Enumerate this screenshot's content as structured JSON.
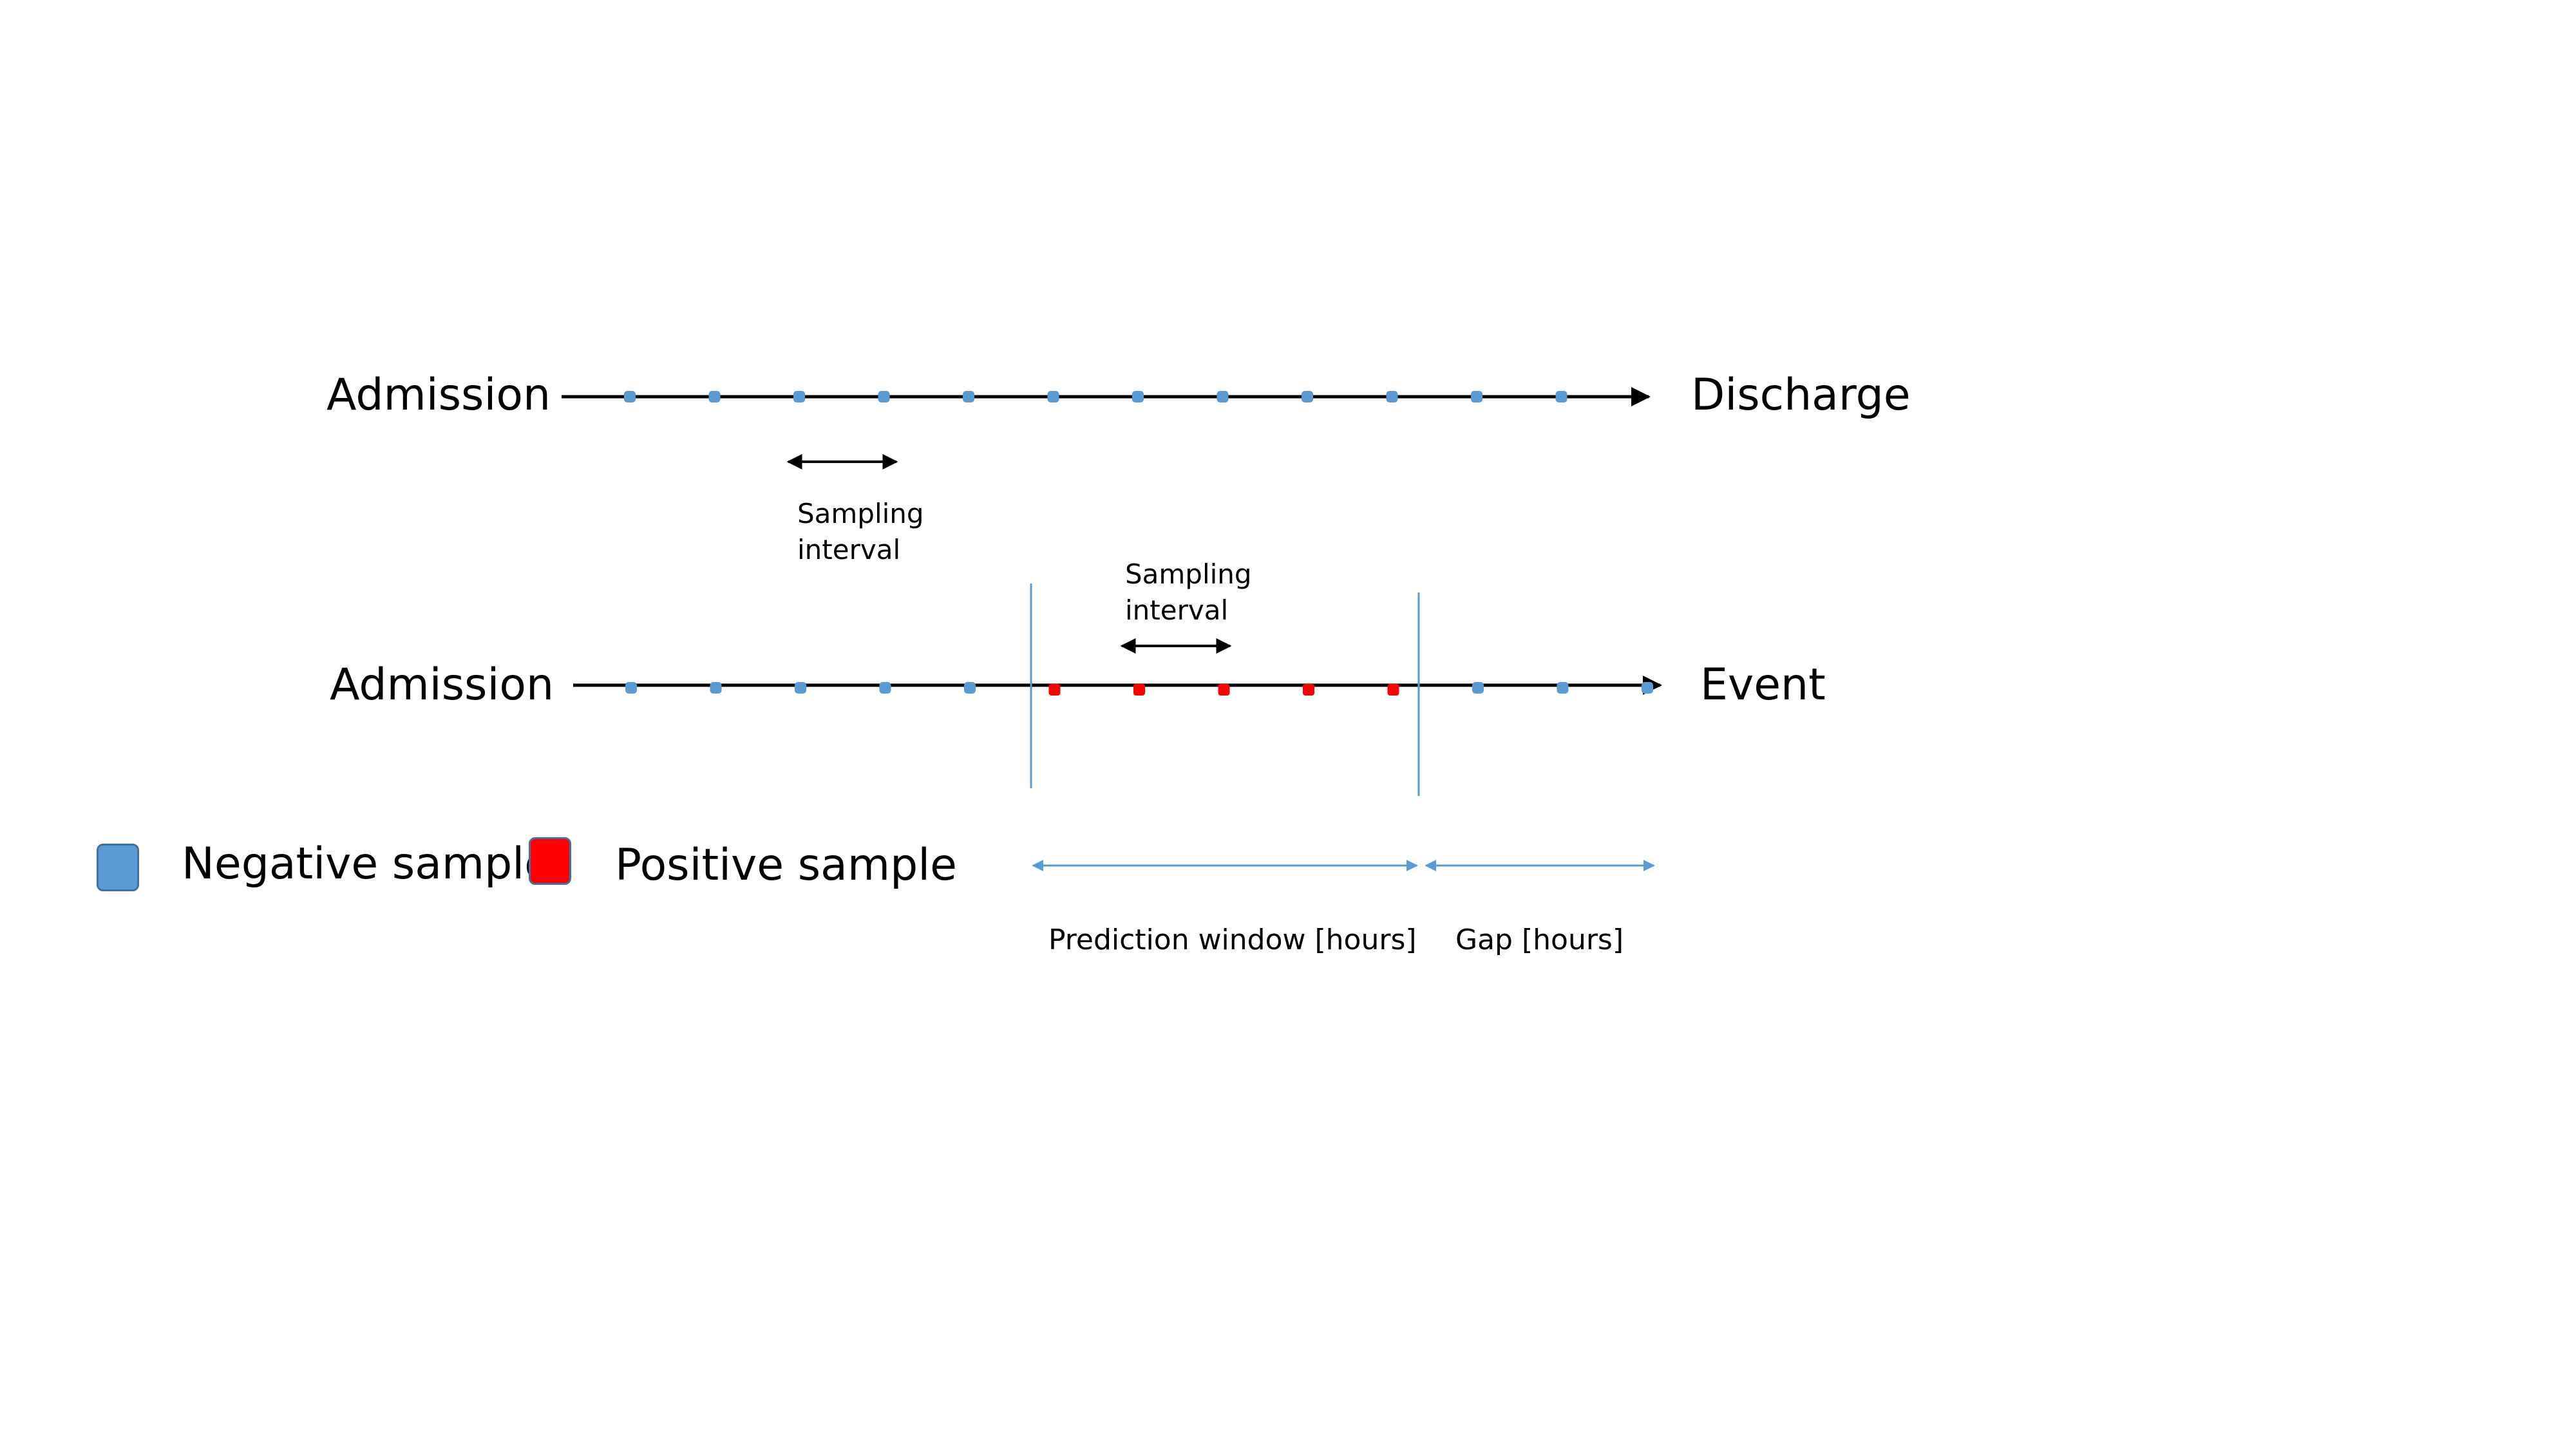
{
  "timeline_1": {
    "start_label": "Admission",
    "end_label": "Discharge",
    "interval_label": "Sampling interval",
    "sample_types": [
      "negative",
      "negative",
      "negative",
      "negative",
      "negative",
      "negative",
      "negative",
      "negative",
      "negative",
      "negative",
      "negative",
      "negative"
    ]
  },
  "timeline_2": {
    "start_label": "Admission",
    "end_label": "Event",
    "interval_label": "Sampling interval",
    "sample_types": [
      "negative",
      "negative",
      "negative",
      "negative",
      "negative",
      "positive",
      "positive",
      "positive",
      "positive",
      "positive",
      "negative",
      "negative",
      "negative"
    ]
  },
  "windows": {
    "prediction_label": "Prediction window [hours]",
    "gap_label": "Gap [hours]"
  },
  "legend": {
    "negative_label": "Negative sample",
    "positive_label": "Positive sample"
  },
  "colors": {
    "negative": "#5b9bd5",
    "positive": "#ff0000",
    "axis": "#000000",
    "window_lines": "#5b9bd5"
  }
}
